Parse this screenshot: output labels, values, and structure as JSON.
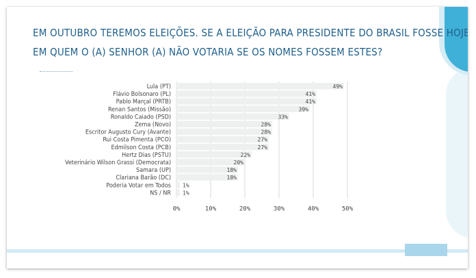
{
  "title": {
    "line1": "EM OUTUBRO TEREMOS ELEIÇÕES. SE A ELEIÇÃO PARA PRESIDENTE DO BRASIL FOSSE HOJE.",
    "line2": "EM QUEM O (A) SENHOR (A) NÃO VOTARIA SE OS NOMES FOSSEM ESTES?"
  },
  "colors": {
    "title": "#1f5f8b",
    "bar": "#eef0f0",
    "grid": "#d9d9d9",
    "accent": "#3fb0d8"
  },
  "chart_data": {
    "type": "bar",
    "orientation": "horizontal",
    "categories": [
      "Lula (PT)",
      "Flávio Bolsonaro (PL)",
      "Pablo Marçal (PRTB)",
      "Renan Santos (Missão)",
      "Ronaldo Caiado (PSD)",
      "Zema (Novo)",
      "Escritor Augusto Cury (Avante)",
      "Rui Costa Pimenta (PCO)",
      "Edmilson Costa (PCB)",
      "Hertz Dias (PSTU)",
      "Veterinário Wilson Grassi (Democrata)",
      "Samara (UP)",
      "Clariana Barão (DC)",
      "Poderia Votar em Todos",
      "NS / NR"
    ],
    "values": [
      49,
      41,
      41,
      39,
      33,
      28,
      28,
      27,
      27,
      22,
      20,
      18,
      18,
      1,
      1
    ],
    "labels": [
      "49%",
      "41%",
      "41%",
      "39%",
      "33%",
      "28%",
      "28%",
      "27%",
      "27%",
      "22%",
      "20%",
      "18%",
      "18%",
      "1%",
      "1%"
    ],
    "xticks": [
      "0%",
      "10%",
      "20%",
      "30%",
      "40%",
      "50%"
    ],
    "xlim": [
      0,
      50
    ],
    "grid": true
  }
}
